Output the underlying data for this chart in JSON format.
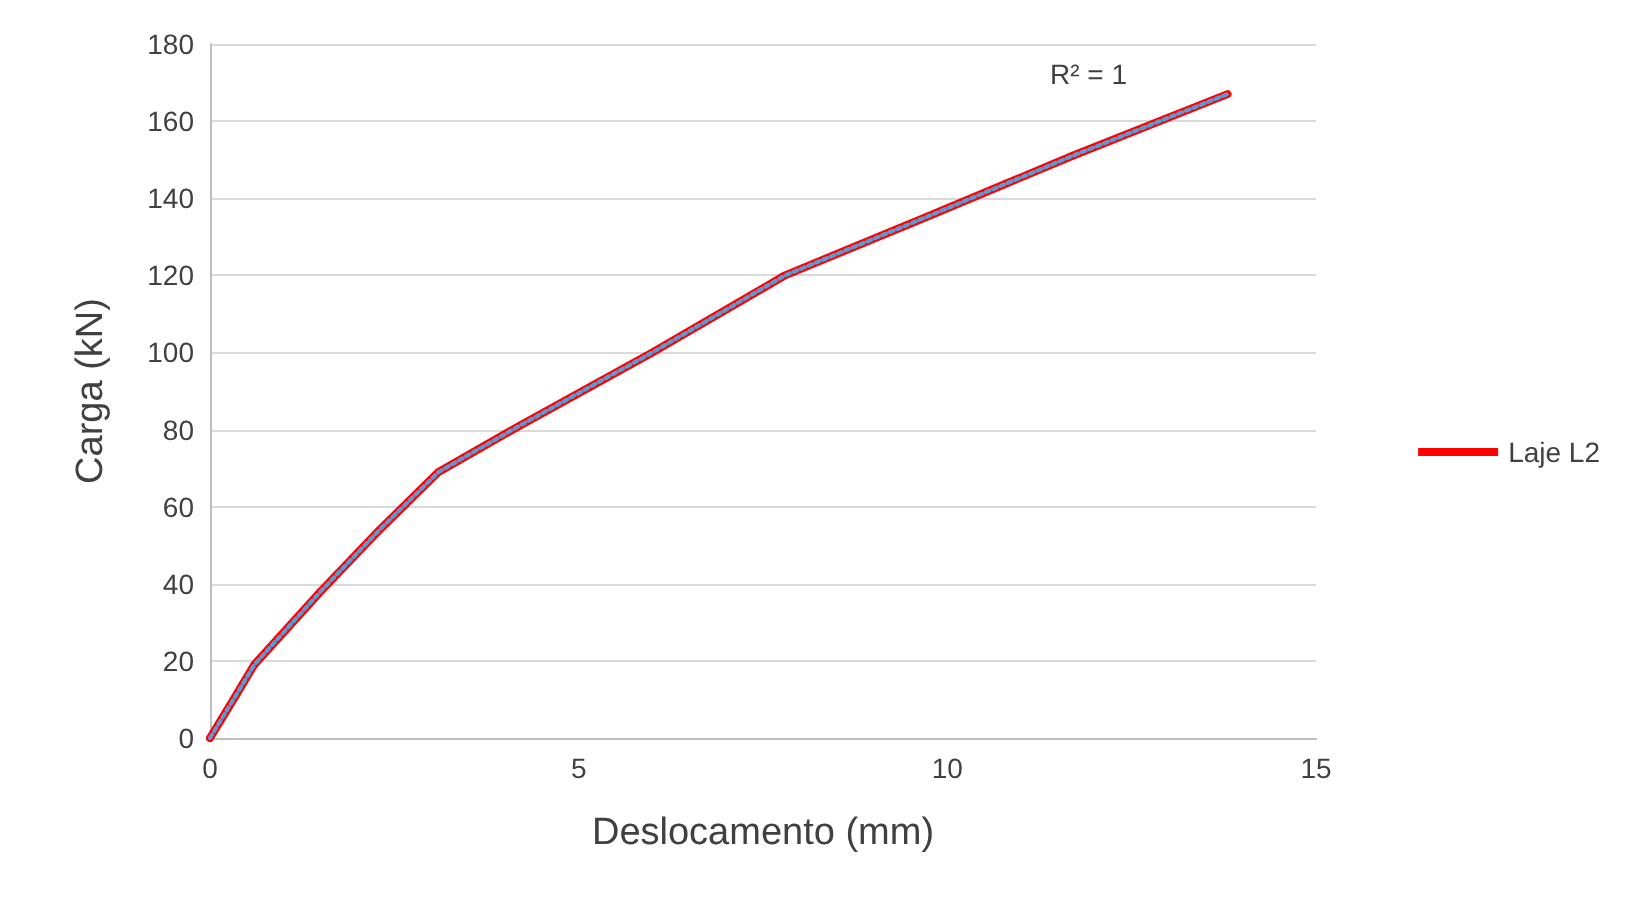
{
  "chart_data": {
    "type": "line",
    "xlabel": "Deslocamento (mm)",
    "ylabel": "Carga (kN)",
    "xlim": [
      0,
      15
    ],
    "xticks": [
      0,
      5,
      10,
      15
    ],
    "ylim": [
      0,
      180
    ],
    "yticks": [
      0,
      20,
      40,
      60,
      80,
      100,
      120,
      140,
      160,
      180
    ],
    "grid": "y",
    "legend": "right",
    "marker": "none",
    "annotations": [
      "R² = 1"
    ],
    "series": [
      {
        "name": "Laje L2",
        "color": "#ff0000",
        "line_style": "solid",
        "x": [
          0,
          0.35,
          0.6,
          1.5,
          2.3,
          3.1,
          4.2,
          6,
          7.8,
          9.7,
          11.7,
          13.8
        ],
        "values": [
          0,
          11,
          19,
          38,
          54,
          69,
          81,
          100,
          120,
          135,
          151,
          167
        ]
      },
      {
        "type": "line",
        "color": "#5b9bd5",
        "line_style": "dotted",
        "x": [
          0,
          0.35,
          0.6,
          1.5,
          2.3,
          3.1,
          4.2,
          6,
          7.8,
          9.7,
          11.7,
          13.8
        ],
        "values": [
          0,
          11,
          19,
          38,
          54,
          69,
          81,
          100,
          120,
          135,
          151,
          167
        ]
      }
    ]
  }
}
